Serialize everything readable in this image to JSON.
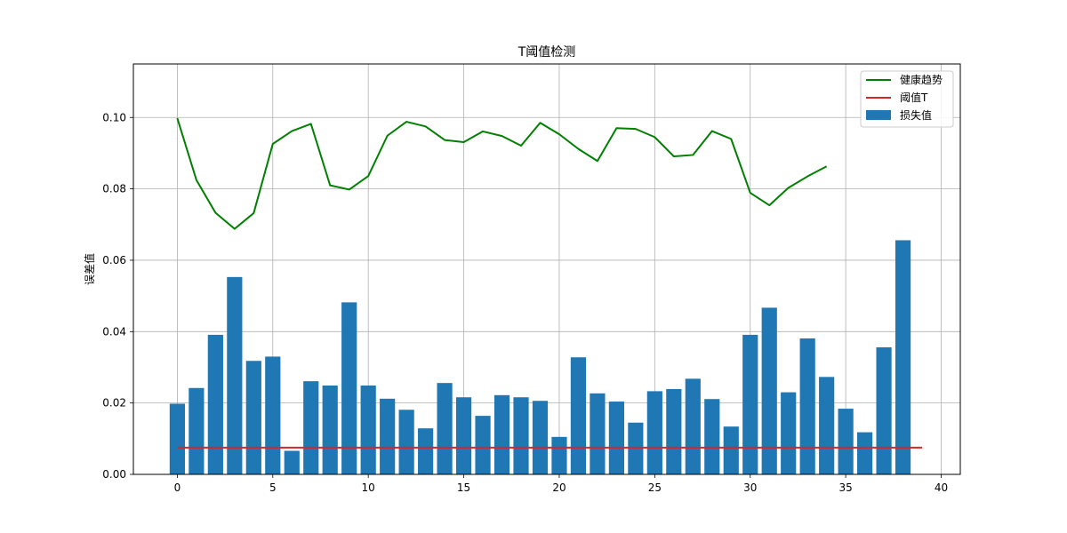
{
  "chart_data": {
    "type": "bar",
    "title": "T阈值检测",
    "xlabel": "",
    "ylabel": "误差值",
    "xlim": [
      -2.3,
      41.0
    ],
    "ylim": [
      0.0,
      0.115
    ],
    "x_ticks": [
      0,
      5,
      10,
      15,
      20,
      25,
      30,
      35,
      40
    ],
    "y_ticks": [
      0.0,
      0.02,
      0.04,
      0.06,
      0.08,
      0.1
    ],
    "y_tick_labels": [
      "0.00",
      "0.02",
      "0.04",
      "0.06",
      "0.08",
      "0.10"
    ],
    "grid": true,
    "legend_position": "top-right",
    "colors": {
      "bar": "#1f77b4",
      "trend": "#008000",
      "threshold": "#d62728",
      "grid": "#b0b0b0"
    },
    "series": [
      {
        "name": "损失值",
        "type": "bar",
        "x": [
          0,
          1,
          2,
          3,
          4,
          5,
          6,
          7,
          8,
          9,
          10,
          11,
          12,
          13,
          14,
          15,
          16,
          17,
          18,
          19,
          20,
          21,
          22,
          23,
          24,
          25,
          26,
          27,
          28,
          29,
          30,
          31,
          32,
          33,
          34,
          35,
          36,
          37,
          38
        ],
        "values": [
          0.0198,
          0.0242,
          0.0391,
          0.0553,
          0.0318,
          0.033,
          0.0066,
          0.0261,
          0.0249,
          0.0482,
          0.0249,
          0.0212,
          0.0181,
          0.0129,
          0.0256,
          0.0216,
          0.0164,
          0.0222,
          0.0216,
          0.0206,
          0.0105,
          0.0328,
          0.0227,
          0.0204,
          0.0145,
          0.0233,
          0.0239,
          0.0268,
          0.0211,
          0.0134,
          0.0391,
          0.0467,
          0.023,
          0.0381,
          0.0273,
          0.0184,
          0.0118,
          0.0356,
          0.0656
        ]
      },
      {
        "name": "健康趋势",
        "type": "line",
        "x": [
          0,
          1,
          2,
          3,
          4,
          5,
          6,
          7,
          8,
          9,
          10,
          11,
          12,
          13,
          14,
          15,
          16,
          17,
          18,
          19,
          20,
          21,
          22,
          23,
          24,
          25,
          26,
          27,
          28,
          29,
          30,
          31,
          32,
          33,
          34
        ],
        "values": [
          0.0998,
          0.0825,
          0.0733,
          0.0688,
          0.0732,
          0.0926,
          0.0962,
          0.0982,
          0.081,
          0.0798,
          0.0836,
          0.0949,
          0.0988,
          0.0975,
          0.0937,
          0.0931,
          0.0961,
          0.0948,
          0.0921,
          0.0985,
          0.0953,
          0.0912,
          0.0878,
          0.097,
          0.0968,
          0.0945,
          0.0891,
          0.0895,
          0.0962,
          0.094,
          0.0789,
          0.0754,
          0.0803,
          0.0835,
          0.0863
        ]
      },
      {
        "name": "阈值T",
        "type": "line",
        "x": [
          0,
          39
        ],
        "values": [
          0.0075,
          0.0075
        ]
      }
    ]
  }
}
